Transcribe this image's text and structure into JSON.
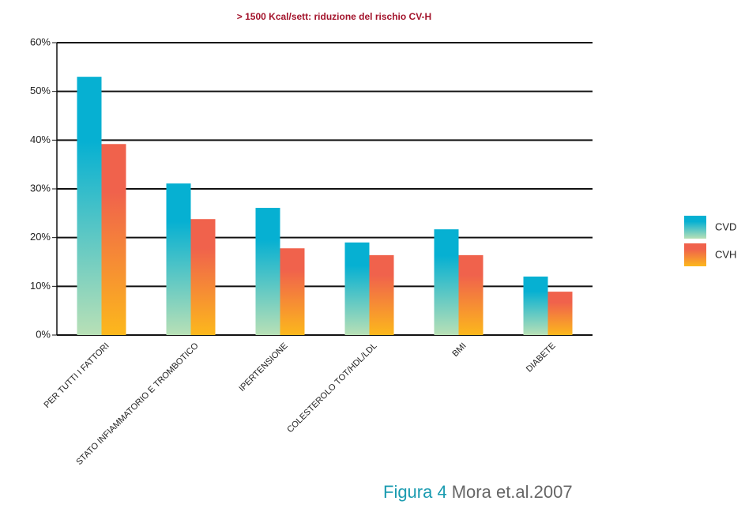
{
  "chart_data": {
    "type": "bar",
    "title": "> 1500 Kcal/sett: riduzione del rischio CV-H",
    "categories": [
      "PER TUTTI I FATTORI",
      "STATO INFIAMMATORIO E TROMBOTICO",
      "IPERTENSIONE",
      "COLESTEROLO TOT/HDL/LDL",
      "BMI",
      "DIABETE"
    ],
    "series": [
      {
        "name": "CVD",
        "colors": [
          "#06b0d2",
          "#b8e0b6"
        ],
        "values": [
          53,
          31.1,
          26.1,
          19,
          21.7,
          12
        ]
      },
      {
        "name": "CVH",
        "colors": [
          "#f0624c",
          "#fcb81c"
        ],
        "values": [
          39.2,
          23.8,
          17.8,
          16.4,
          16.4,
          8.9
        ]
      }
    ],
    "ylim": [
      0,
      60
    ],
    "yticks": [
      {
        "value": 0,
        "label": "0%"
      },
      {
        "value": 10,
        "label": "10%"
      },
      {
        "value": 20,
        "label": "20%"
      },
      {
        "value": 30,
        "label": "30%"
      },
      {
        "value": 40,
        "label": "40%"
      },
      {
        "value": 50,
        "label": "50%"
      },
      {
        "value": 60,
        "label": "60%"
      }
    ],
    "grid": true,
    "legend": "right"
  },
  "caption": {
    "figure": "Figura 4",
    "source": "Mora et.al.2007"
  }
}
